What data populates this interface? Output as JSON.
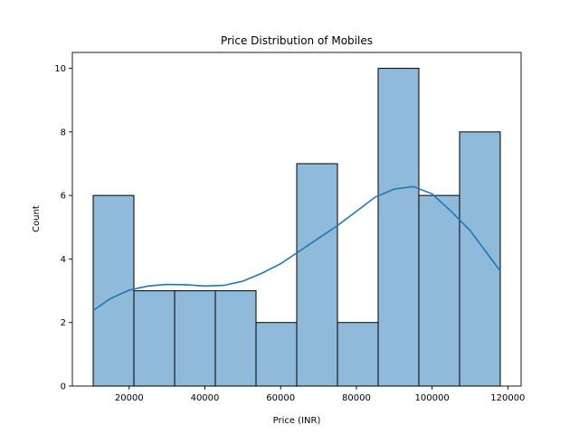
{
  "chart_data": {
    "type": "bar",
    "title": "Price Distribution of Mobiles",
    "xlabel": "Price (INR)",
    "ylabel": "Count",
    "bins": [
      {
        "start": 10500,
        "end": 21250,
        "count": 6
      },
      {
        "start": 21250,
        "end": 32000,
        "count": 3
      },
      {
        "start": 32000,
        "end": 42750,
        "count": 3
      },
      {
        "start": 42750,
        "end": 53500,
        "count": 3
      },
      {
        "start": 53500,
        "end": 64250,
        "count": 2
      },
      {
        "start": 64250,
        "end": 75000,
        "count": 7
      },
      {
        "start": 75000,
        "end": 85750,
        "count": 2
      },
      {
        "start": 85750,
        "end": 96500,
        "count": 10
      },
      {
        "start": 96500,
        "end": 107250,
        "count": 6
      },
      {
        "start": 107250,
        "end": 118000,
        "count": 8
      }
    ],
    "kde": {
      "x": [
        10500,
        15000,
        20000,
        25000,
        30000,
        35000,
        40000,
        45000,
        50000,
        55000,
        60000,
        65000,
        70000,
        75000,
        80000,
        85000,
        90000,
        95000,
        100000,
        105000,
        110000,
        115000,
        118000
      ],
      "y": [
        2.38,
        2.75,
        3.02,
        3.15,
        3.2,
        3.19,
        3.15,
        3.17,
        3.3,
        3.55,
        3.85,
        4.25,
        4.65,
        5.05,
        5.5,
        5.95,
        6.2,
        6.28,
        6.05,
        5.5,
        4.9,
        4.1,
        3.62
      ]
    },
    "xlim": [
      5000,
      123500
    ],
    "ylim": [
      0,
      10.5
    ],
    "xticks": [
      20000,
      40000,
      60000,
      80000,
      100000,
      120000
    ],
    "yticks": [
      0,
      2,
      4,
      6,
      8,
      10
    ],
    "grid": false,
    "colors": {
      "bar_fill": "#8fbad9",
      "bar_edge": "#000000",
      "kde_line": "#1f77b4"
    }
  }
}
